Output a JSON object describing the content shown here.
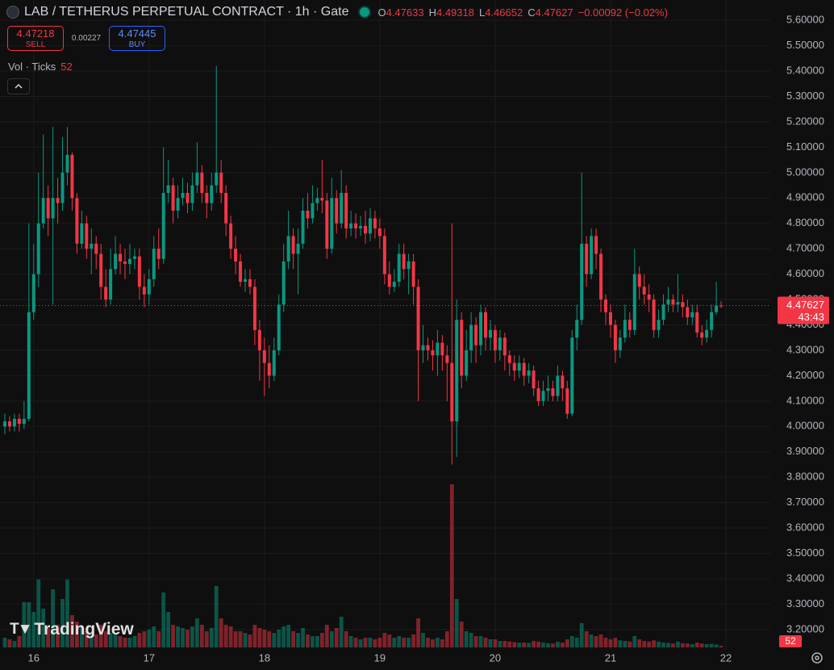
{
  "toolbar": {
    "title": "LAB / TETHERUS PERPETUAL CONTRACT · 1h · Gate",
    "ohlc_labels": [
      "O",
      "H",
      "L",
      "C"
    ],
    "change": "−0.00092 (−0.02%)",
    "sell_price": 4.47218,
    "sell_label": "SELL",
    "spread": 0.00227,
    "buy_price": 4.47445,
    "buy_label": "BUY",
    "volume_label": "Vol · Ticks",
    "countdown": "43:43",
    "branding": "TradingView"
  },
  "chart_data": {
    "type": "candlestick",
    "up_color": "#089981",
    "down_color": "#f23645",
    "grid": true,
    "ylim": [
      3.12,
      5.68
    ],
    "yticks": [
      {
        "value": 5.6,
        "label": "5.60000"
      },
      {
        "value": 5.5,
        "label": "5.50000"
      },
      {
        "value": 5.4,
        "label": "5.40000"
      },
      {
        "value": 5.3,
        "label": "5.30000"
      },
      {
        "value": 5.2,
        "label": "5.20000"
      },
      {
        "value": 5.1,
        "label": "5.10000"
      },
      {
        "value": 5.0,
        "label": "5.00000"
      },
      {
        "value": 4.9,
        "label": "4.90000"
      },
      {
        "value": 4.8,
        "label": "4.80000"
      },
      {
        "value": 4.7,
        "label": "4.70000"
      },
      {
        "value": 4.6,
        "label": "4.60000"
      },
      {
        "value": 4.5,
        "label": "4.50000"
      },
      {
        "value": 4.4,
        "label": "4.40000"
      },
      {
        "value": 4.3,
        "label": "4.30000"
      },
      {
        "value": 4.2,
        "label": "4.20000"
      },
      {
        "value": 4.1,
        "label": "4.10000"
      },
      {
        "value": 4.0,
        "label": "4.00000"
      },
      {
        "value": 3.9,
        "label": "3.90000"
      },
      {
        "value": 3.8,
        "label": "3.80000"
      },
      {
        "value": 3.7,
        "label": "3.70000"
      },
      {
        "value": 3.6,
        "label": "3.60000"
      },
      {
        "value": 3.5,
        "label": "3.50000"
      },
      {
        "value": 3.4,
        "label": "3.40000"
      },
      {
        "value": 3.3,
        "label": "3.30000"
      },
      {
        "value": 3.2,
        "label": "3.20000"
      }
    ],
    "categories": [
      null,
      null,
      null,
      null,
      null,
      null,
      "16",
      null,
      null,
      null,
      null,
      null,
      null,
      null,
      null,
      null,
      null,
      null,
      null,
      null,
      null,
      null,
      null,
      null,
      null,
      null,
      null,
      null,
      null,
      null,
      "17",
      null,
      null,
      null,
      null,
      null,
      null,
      null,
      null,
      null,
      null,
      null,
      null,
      null,
      null,
      null,
      null,
      null,
      null,
      null,
      null,
      null,
      null,
      null,
      "18",
      null,
      null,
      null,
      null,
      null,
      null,
      null,
      null,
      null,
      null,
      null,
      null,
      null,
      null,
      null,
      null,
      null,
      null,
      null,
      null,
      null,
      null,
      null,
      "19",
      null,
      null,
      null,
      null,
      null,
      null,
      null,
      null,
      null,
      null,
      null,
      null,
      null,
      null,
      null,
      null,
      null,
      null,
      null,
      null,
      null,
      null,
      null,
      "20",
      null,
      null,
      null,
      null,
      null,
      null,
      null,
      null,
      null,
      null,
      null,
      null,
      null,
      null,
      null,
      null,
      null,
      null,
      null,
      null,
      null,
      null,
      null,
      "21",
      null,
      null,
      null,
      null,
      null,
      null,
      null,
      null,
      null,
      null,
      null,
      null,
      null,
      null,
      null,
      null,
      null,
      null,
      null,
      null,
      null,
      null,
      null,
      "22"
    ],
    "open": [
      4.0,
      4.02,
      4.0,
      4.03,
      4.01,
      4.03,
      4.45,
      4.6,
      4.8,
      4.9,
      4.82,
      4.9,
      4.88,
      5.0,
      5.07,
      4.9,
      4.72,
      4.8,
      4.7,
      4.72,
      4.68,
      4.55,
      4.5,
      4.62,
      4.68,
      4.65,
      4.64,
      4.66,
      4.67,
      4.55,
      4.52,
      4.58,
      4.7,
      4.66,
      4.92,
      4.95,
      4.85,
      4.9,
      4.92,
      4.88,
      4.95,
      5.0,
      4.92,
      4.88,
      4.95,
      5.0,
      4.92,
      4.8,
      4.7,
      4.65,
      4.57,
      4.58,
      4.55,
      4.38,
      4.3,
      4.25,
      4.2,
      4.3,
      4.48,
      4.65,
      4.75,
      4.68,
      4.72,
      4.85,
      4.82,
      4.88,
      4.9,
      4.89,
      4.7,
      4.9,
      4.8,
      4.92,
      4.78,
      4.8,
      4.78,
      4.79,
      4.76,
      4.82,
      4.78,
      4.75,
      4.6,
      4.55,
      4.57,
      4.68,
      4.62,
      4.65,
      4.55,
      4.3,
      4.32,
      4.3,
      4.28,
      4.33,
      4.28,
      4.25,
      4.02,
      4.42,
      4.2,
      4.3,
      4.4,
      4.32,
      4.45,
      4.35,
      4.38,
      4.3,
      4.35,
      4.28,
      4.25,
      4.22,
      4.25,
      4.2,
      4.22,
      4.15,
      4.1,
      4.14,
      4.15,
      4.12,
      4.2,
      4.15,
      4.05,
      4.35,
      4.42,
      4.72,
      4.6,
      4.75,
      4.68,
      4.5,
      4.45,
      4.4,
      4.3,
      4.35,
      4.42,
      4.38,
      4.6,
      4.55,
      4.52,
      4.5,
      4.38,
      4.42,
      4.48,
      4.5,
      4.48,
      4.49,
      4.47,
      4.43,
      4.45,
      4.37,
      4.35,
      4.38,
      4.45,
      4.47633,
      null
    ],
    "high": [
      4.05,
      4.04,
      4.05,
      4.05,
      4.1,
      4.8,
      4.72,
      5.0,
      5.15,
      4.95,
      5.18,
      4.98,
      5.14,
      5.18,
      5.08,
      4.92,
      4.85,
      4.83,
      4.78,
      4.75,
      4.72,
      4.62,
      4.7,
      4.75,
      4.72,
      4.7,
      4.72,
      4.7,
      4.7,
      4.6,
      4.62,
      4.75,
      4.78,
      5.1,
      5.05,
      4.98,
      4.95,
      4.98,
      4.96,
      5.0,
      5.12,
      5.03,
      4.95,
      5.0,
      5.42,
      5.05,
      4.95,
      4.83,
      4.75,
      4.68,
      4.62,
      4.62,
      4.58,
      4.42,
      4.35,
      4.32,
      4.35,
      4.52,
      4.72,
      4.85,
      4.78,
      4.78,
      4.9,
      4.92,
      4.95,
      4.94,
      5.05,
      4.92,
      4.98,
      4.93,
      5.01,
      4.95,
      4.85,
      4.84,
      4.83,
      4.85,
      4.86,
      4.85,
      4.82,
      4.78,
      4.65,
      4.62,
      4.72,
      4.72,
      4.68,
      4.68,
      4.58,
      4.4,
      4.35,
      4.34,
      4.38,
      4.36,
      4.32,
      4.8,
      4.5,
      4.45,
      4.38,
      4.45,
      4.43,
      4.48,
      4.47,
      4.42,
      4.4,
      4.38,
      4.37,
      4.3,
      4.28,
      4.28,
      4.27,
      4.25,
      4.24,
      4.18,
      4.18,
      4.2,
      4.18,
      4.24,
      4.22,
      4.18,
      4.38,
      4.48,
      5.0,
      4.75,
      4.78,
      4.78,
      4.7,
      4.52,
      4.48,
      4.42,
      4.38,
      4.48,
      4.45,
      4.7,
      4.63,
      4.6,
      4.56,
      4.52,
      4.46,
      4.52,
      4.55,
      4.52,
      4.6,
      4.52,
      4.5,
      4.48,
      4.48,
      4.4,
      4.42,
      4.48,
      4.57,
      4.49318,
      null
    ],
    "low": [
      3.97,
      3.98,
      3.98,
      3.98,
      3.99,
      4.02,
      4.42,
      4.55,
      4.78,
      4.75,
      4.48,
      4.8,
      4.85,
      4.95,
      4.85,
      4.68,
      4.7,
      4.66,
      4.6,
      4.62,
      4.5,
      4.47,
      4.48,
      4.6,
      4.6,
      4.58,
      4.6,
      4.62,
      4.5,
      4.47,
      4.48,
      4.55,
      4.62,
      4.64,
      4.88,
      4.8,
      4.82,
      4.87,
      4.84,
      4.85,
      4.92,
      4.88,
      4.82,
      4.85,
      4.92,
      4.88,
      4.75,
      4.66,
      4.6,
      4.55,
      4.53,
      4.52,
      4.32,
      4.18,
      4.12,
      4.15,
      4.18,
      4.28,
      4.45,
      4.62,
      4.62,
      4.52,
      4.7,
      4.78,
      4.8,
      4.85,
      4.84,
      4.66,
      4.68,
      4.76,
      4.78,
      4.74,
      4.75,
      4.74,
      4.75,
      4.72,
      4.73,
      4.74,
      4.7,
      4.56,
      4.52,
      4.53,
      4.55,
      4.58,
      4.52,
      4.48,
      4.1,
      4.25,
      4.26,
      4.22,
      4.2,
      4.22,
      4.1,
      3.85,
      3.88,
      4.15,
      4.18,
      4.25,
      4.25,
      4.28,
      4.3,
      4.3,
      4.25,
      4.26,
      4.22,
      4.2,
      4.18,
      4.19,
      4.16,
      4.17,
      4.12,
      4.08,
      4.08,
      4.1,
      4.1,
      4.1,
      4.1,
      4.03,
      4.04,
      4.3,
      4.4,
      4.55,
      4.58,
      4.62,
      4.45,
      4.4,
      4.35,
      4.25,
      4.27,
      4.33,
      4.35,
      4.36,
      4.5,
      4.48,
      4.45,
      4.35,
      4.35,
      4.4,
      4.45,
      4.45,
      4.45,
      4.43,
      4.4,
      4.4,
      4.35,
      4.32,
      4.33,
      4.35,
      4.44,
      4.46652,
      null
    ],
    "close": [
      4.02,
      4.0,
      4.03,
      4.01,
      4.03,
      4.45,
      4.6,
      4.8,
      4.9,
      4.82,
      4.9,
      4.88,
      5.0,
      5.07,
      4.9,
      4.72,
      4.8,
      4.7,
      4.72,
      4.68,
      4.55,
      4.5,
      4.62,
      4.68,
      4.65,
      4.64,
      4.66,
      4.67,
      4.55,
      4.52,
      4.58,
      4.7,
      4.66,
      4.92,
      4.95,
      4.85,
      4.9,
      4.92,
      4.88,
      4.95,
      5.0,
      4.92,
      4.88,
      4.95,
      5.0,
      4.92,
      4.8,
      4.7,
      4.65,
      4.57,
      4.58,
      4.55,
      4.38,
      4.3,
      4.25,
      4.2,
      4.3,
      4.48,
      4.65,
      4.75,
      4.68,
      4.72,
      4.85,
      4.82,
      4.88,
      4.9,
      4.89,
      4.7,
      4.9,
      4.8,
      4.92,
      4.78,
      4.8,
      4.78,
      4.79,
      4.76,
      4.82,
      4.78,
      4.75,
      4.6,
      4.55,
      4.57,
      4.68,
      4.62,
      4.65,
      4.55,
      4.3,
      4.32,
      4.3,
      4.28,
      4.33,
      4.28,
      4.25,
      4.02,
      4.42,
      4.2,
      4.3,
      4.4,
      4.32,
      4.45,
      4.35,
      4.38,
      4.3,
      4.35,
      4.28,
      4.25,
      4.22,
      4.25,
      4.2,
      4.22,
      4.15,
      4.1,
      4.14,
      4.15,
      4.12,
      4.2,
      4.15,
      4.05,
      4.35,
      4.42,
      4.72,
      4.6,
      4.75,
      4.68,
      4.5,
      4.45,
      4.4,
      4.3,
      4.35,
      4.42,
      4.38,
      4.6,
      4.55,
      4.52,
      4.5,
      4.38,
      4.42,
      4.48,
      4.5,
      4.48,
      4.49,
      4.47,
      4.43,
      4.45,
      4.37,
      4.35,
      4.38,
      4.45,
      4.47633,
      4.47627,
      null
    ],
    "volume": [
      300,
      250,
      200,
      350,
      1400,
      1400,
      1100,
      2100,
      1200,
      600,
      1800,
      700,
      1500,
      2100,
      1000,
      800,
      600,
      500,
      450,
      400,
      700,
      500,
      450,
      400,
      350,
      300,
      300,
      350,
      450,
      500,
      550,
      650,
      500,
      1700,
      1100,
      700,
      650,
      600,
      550,
      650,
      900,
      700,
      500,
      600,
      1900,
      900,
      700,
      650,
      500,
      500,
      450,
      400,
      700,
      600,
      550,
      500,
      450,
      550,
      650,
      700,
      500,
      450,
      600,
      400,
      350,
      350,
      450,
      700,
      500,
      600,
      950,
      500,
      350,
      300,
      250,
      300,
      300,
      250,
      300,
      450,
      400,
      300,
      350,
      300,
      300,
      400,
      900,
      450,
      300,
      250,
      300,
      250,
      500,
      5050,
      1500,
      800,
      500,
      450,
      350,
      350,
      300,
      250,
      250,
      200,
      200,
      180,
      160,
      150,
      150,
      140,
      200,
      180,
      150,
      130,
      120,
      180,
      150,
      250,
      350,
      300,
      750,
      500,
      400,
      350,
      400,
      300,
      250,
      300,
      220,
      200,
      180,
      350,
      250,
      200,
      180,
      220,
      180,
      150,
      140,
      120,
      180,
      130,
      120,
      100,
      150,
      120,
      100,
      110,
      90,
      52,
      null
    ]
  }
}
